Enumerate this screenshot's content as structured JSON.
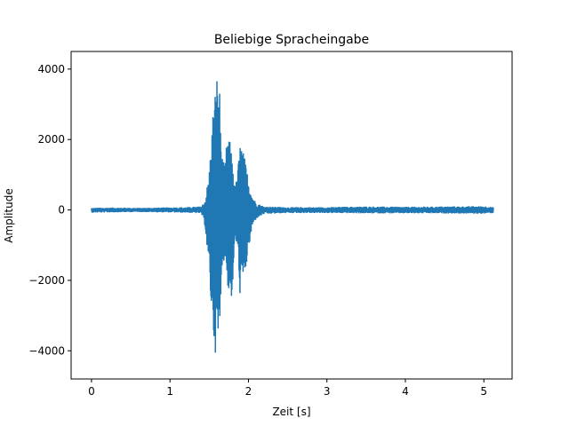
{
  "chart_data": {
    "type": "line",
    "title": "Beliebige Spracheingabe",
    "xlabel": "Zeit [s]",
    "ylabel": "Amplitude",
    "xlim": [
      -0.26,
      5.36
    ],
    "ylim": [
      -4800,
      4500
    ],
    "xticks": [
      0,
      1,
      2,
      3,
      4,
      5
    ],
    "yticks": [
      -4000,
      -2000,
      0,
      2000,
      4000
    ],
    "grid": false,
    "series": [
      {
        "color": "#1f77b4",
        "envelope": {
          "t": [
            0.0,
            0.3,
            0.6,
            0.9,
            1.2,
            1.4,
            1.45,
            1.5,
            1.55,
            1.6,
            1.63,
            1.66,
            1.7,
            1.73,
            1.76,
            1.8,
            1.83,
            1.86,
            1.9,
            1.95,
            2.0,
            2.05,
            2.1,
            2.2,
            2.5,
            3.0,
            3.5,
            4.0,
            4.5,
            5.0,
            5.12
          ],
          "max": [
            60,
            70,
            60,
            70,
            80,
            100,
            300,
            1100,
            2900,
            3900,
            3600,
            1600,
            1200,
            2200,
            2000,
            1400,
            600,
            1100,
            2000,
            1500,
            900,
            400,
            200,
            100,
            80,
            80,
            100,
            90,
            100,
            110,
            80
          ],
          "min": [
            -80,
            -70,
            -60,
            -70,
            -80,
            -100,
            -500,
            -2000,
            -3600,
            -4400,
            -4000,
            -1600,
            -1400,
            -2100,
            -2500,
            -2600,
            -700,
            -1300,
            -2700,
            -2000,
            -1200,
            -500,
            -250,
            -120,
            -90,
            -90,
            -100,
            -100,
            -100,
            -110,
            -90
          ]
        }
      }
    ]
  }
}
